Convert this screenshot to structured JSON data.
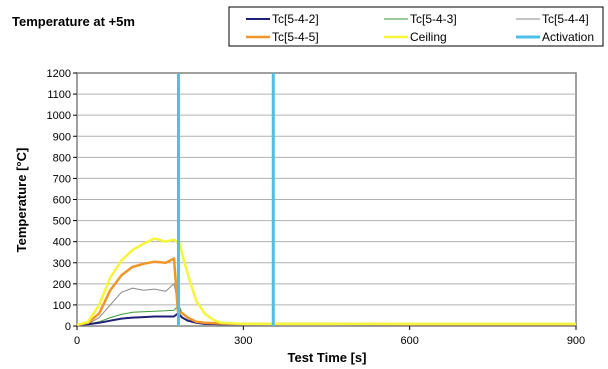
{
  "chart_data": {
    "type": "line",
    "title": "Temperature at +5m",
    "xlabel": "Test Time [s]",
    "ylabel": "Temperature [°C]",
    "xlim": [
      0,
      900
    ],
    "ylim": [
      0,
      1200
    ],
    "xticks": [
      0,
      300,
      600,
      900
    ],
    "yticks": [
      0,
      100,
      200,
      300,
      400,
      500,
      600,
      700,
      800,
      900,
      1000,
      1100,
      1200
    ],
    "grid": "horizontal",
    "legend_position": "top",
    "series": [
      {
        "name": "Tc[5-4-2]",
        "color": "#1f1f7a",
        "x": [
          0,
          20,
          40,
          60,
          80,
          100,
          120,
          140,
          160,
          175,
          182,
          190,
          200,
          215,
          230,
          260,
          300,
          400,
          500,
          600,
          700,
          800,
          900
        ],
        "y": [
          5,
          8,
          15,
          25,
          35,
          40,
          42,
          45,
          45,
          45,
          60,
          40,
          25,
          15,
          10,
          8,
          8,
          10,
          9,
          8,
          8,
          8,
          8
        ]
      },
      {
        "name": "Tc[5-4-3]",
        "color": "#3a9a3a",
        "x": [
          0,
          20,
          40,
          60,
          80,
          100,
          120,
          140,
          160,
          175,
          182,
          190,
          200,
          215,
          230,
          260,
          300,
          400,
          500,
          600,
          700,
          800,
          900
        ],
        "y": [
          5,
          8,
          20,
          40,
          55,
          65,
          68,
          70,
          72,
          75,
          95,
          60,
          35,
          20,
          12,
          10,
          9,
          9,
          9,
          8,
          8,
          8,
          8
        ]
      },
      {
        "name": "Tc[5-4-4]",
        "color": "#8a8a8a",
        "x": [
          0,
          20,
          40,
          60,
          80,
          100,
          120,
          140,
          160,
          175,
          182,
          190,
          200,
          215,
          230,
          260,
          300,
          400,
          500,
          600,
          700,
          800,
          900
        ],
        "y": [
          5,
          10,
          40,
          100,
          160,
          180,
          170,
          175,
          165,
          200,
          110,
          60,
          35,
          20,
          12,
          10,
          9,
          9,
          9,
          8,
          8,
          8,
          8
        ]
      },
      {
        "name": "Tc[5-4-5]",
        "color": "#f0962a",
        "x": [
          0,
          20,
          40,
          60,
          80,
          100,
          120,
          140,
          160,
          175,
          182,
          190,
          200,
          215,
          230,
          260,
          300,
          400,
          500,
          600,
          700,
          800,
          900
        ],
        "y": [
          5,
          15,
          60,
          170,
          240,
          280,
          295,
          305,
          300,
          320,
          70,
          60,
          40,
          20,
          15,
          12,
          10,
          10,
          10,
          9,
          9,
          9,
          9
        ]
      },
      {
        "name": "Ceiling",
        "color": "#f5f53a",
        "x": [
          0,
          20,
          40,
          60,
          80,
          100,
          120,
          140,
          160,
          175,
          185,
          195,
          205,
          215,
          230,
          245,
          260,
          300,
          400,
          500,
          600,
          700,
          800,
          900
        ],
        "y": [
          5,
          20,
          100,
          230,
          310,
          360,
          390,
          415,
          400,
          410,
          390,
          290,
          200,
          120,
          60,
          30,
          15,
          10,
          10,
          10,
          10,
          10,
          10,
          10
        ]
      }
    ],
    "vertical_lines": [
      {
        "name": "Activation",
        "color": "#4ec0e8",
        "x": [
          183,
          354
        ]
      }
    ],
    "legend_order": [
      "Tc[5-4-2]",
      "Tc[5-4-3]",
      "Tc[5-4-4]",
      "Tc[5-4-5]",
      "Ceiling",
      "Activation"
    ]
  }
}
